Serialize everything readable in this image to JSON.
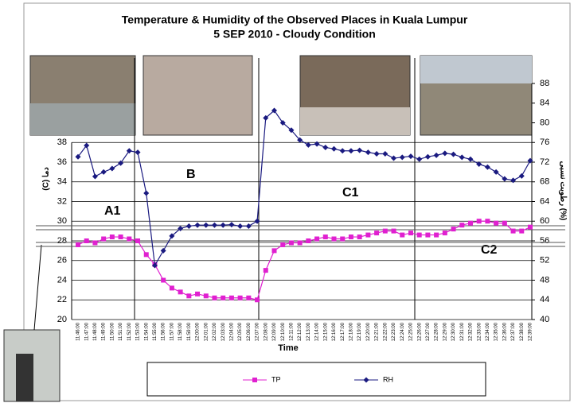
{
  "chart_data": {
    "type": "line",
    "title": "Temperature & Humidity of the Observed Places in Kuala Lumpur",
    "subtitle": "5 SEP 2010 - Cloudy Condition",
    "x_label": "Time",
    "y_label": "(C) دما",
    "y2_label": "رطوبت نسبی (%)",
    "annotations": [
      "A1",
      "B",
      "C1",
      "C2"
    ],
    "categories": [
      "11:46:00",
      "11:47:00",
      "11:48:00",
      "11:49:00",
      "11:50:00",
      "11:51:00",
      "11:52:00",
      "11:53:00",
      "11:54:00",
      "11:55:00",
      "11:56:00",
      "11:57:00",
      "11:58:00",
      "11:59:00",
      "12:00:00",
      "12:01:00",
      "12:02:00",
      "12:03:00",
      "12:04:00",
      "12:05:00",
      "12:06:00",
      "12:07:00",
      "12:08:00",
      "12:09:00",
      "12:10:00",
      "12:11:00",
      "12:12:00",
      "12:13:00",
      "12:14:00",
      "12:15:00",
      "12:16:00",
      "12:17:00",
      "12:18:00",
      "12:19:00",
      "12:20:00",
      "12:21:00",
      "12:22:00",
      "12:23:00",
      "12:24:00",
      "12:25:00",
      "12:26:00",
      "12:27:00",
      "12:28:00",
      "12:29:00",
      "12:30:00",
      "12:31:00",
      "12:32:00",
      "12:33:00",
      "12:34:00",
      "12:35:00",
      "12:36:00",
      "12:37:00",
      "12:38:00",
      "12:39:00"
    ],
    "series": [
      {
        "name": "TP",
        "color": "#e020d0",
        "marker": "square",
        "values": [
          27.6,
          28,
          27.8,
          28.2,
          28.4,
          28.4,
          28.2,
          28,
          26.6,
          25.6,
          24,
          23.2,
          22.8,
          22.4,
          22.6,
          22.4,
          22.2,
          22.2,
          22.2,
          22.2,
          22.2,
          22,
          25,
          27,
          27.6,
          27.8,
          27.8,
          28,
          28.2,
          28.4,
          28.2,
          28.2,
          28.4,
          28.4,
          28.6,
          28.8,
          29,
          29,
          28.6,
          28.8,
          28.6,
          28.6,
          28.6,
          28.8,
          29.2,
          29.6,
          29.8,
          30,
          30,
          29.8,
          29.8,
          29,
          29,
          29.4
        ]
      },
      {
        "name": "RH",
        "color": "#1a1a80",
        "marker": "diamond",
        "axis": "y2",
        "values": [
          73.1,
          75.4,
          69.1,
          70,
          70.7,
          71.8,
          74.3,
          74,
          65.7,
          51,
          54,
          57,
          58.5,
          59,
          59.2,
          59.2,
          59.2,
          59.2,
          59.3,
          59,
          59,
          60,
          81,
          82.5,
          80,
          78.5,
          76.5,
          75.5,
          75.7,
          75,
          74.7,
          74.3,
          74.3,
          74.4,
          74,
          73.7,
          73.7,
          72.8,
          73,
          73.2,
          72.6,
          73.1,
          73.4,
          73.8,
          73.6,
          73,
          72.6,
          71.6,
          71,
          70,
          68.6,
          68.3,
          69.2,
          72.3
        ]
      }
    ],
    "ylim": [
      20,
      44
    ],
    "yticks": [
      20,
      22,
      24,
      26,
      28,
      30,
      32,
      34,
      36,
      38
    ],
    "y2lim": [
      40,
      88
    ],
    "y2ticks": [
      40,
      44,
      48,
      52,
      56,
      60,
      64,
      68,
      72,
      76,
      80,
      84,
      88
    ],
    "grid": true,
    "legend": "bottom"
  }
}
